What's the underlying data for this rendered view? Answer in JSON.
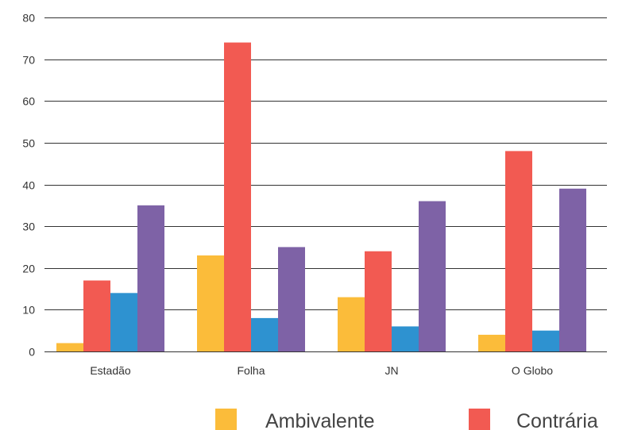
{
  "chart_data": {
    "type": "bar",
    "categories": [
      "Estadão",
      "Folha",
      "JN",
      "O Globo"
    ],
    "series": [
      {
        "name": "Ambivalente",
        "color": "#FBBC3A",
        "values": [
          2,
          23,
          13,
          4
        ]
      },
      {
        "name": "Contrária",
        "color": "#F25A52",
        "values": [
          17,
          74,
          24,
          48
        ]
      },
      {
        "name": "",
        "color": "#2E92D0",
        "values": [
          14,
          8,
          6,
          5
        ]
      },
      {
        "name": "",
        "color": "#7E62A6",
        "values": [
          35,
          25,
          36,
          39
        ]
      }
    ],
    "ylim": [
      0,
      80
    ],
    "yticks": [
      0,
      10,
      20,
      30,
      40,
      50,
      60,
      70,
      80
    ],
    "grid": true,
    "legend_position": "bottom",
    "legend_visible": [
      "Ambivalente",
      "Contrária"
    ]
  }
}
